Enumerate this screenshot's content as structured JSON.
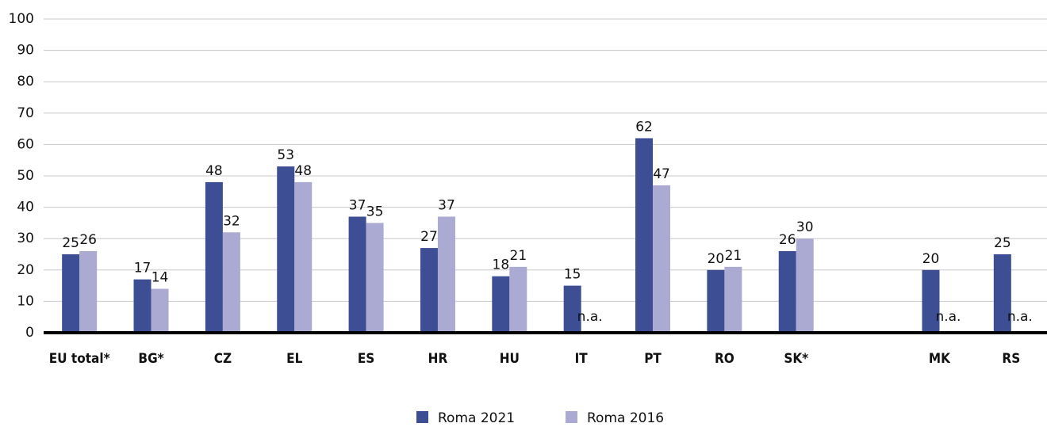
{
  "chart_data": {
    "type": "bar",
    "categories": [
      "EU total*",
      "BG*",
      "CZ",
      "EL",
      "ES",
      "HR",
      "HU",
      "IT",
      "PT",
      "RO",
      "SK*",
      null,
      "MK",
      "RS"
    ],
    "series": [
      {
        "name": "Roma 2021",
        "color": "#3d4e94",
        "values": [
          25,
          17,
          48,
          53,
          37,
          27,
          18,
          15,
          62,
          20,
          26,
          null,
          20,
          25
        ]
      },
      {
        "name": "Roma 2016",
        "color": "#aaaad3",
        "values": [
          26,
          14,
          32,
          48,
          35,
          37,
          21,
          null,
          47,
          21,
          30,
          null,
          null,
          null
        ],
        "value_labels": [
          "26",
          "14",
          "32",
          "48",
          "35",
          "37",
          "21",
          "n.a.",
          "47",
          "21",
          "30",
          null,
          "n.a.",
          "n.a."
        ]
      }
    ],
    "ylim": [
      0,
      100
    ],
    "yticks": [
      0,
      10,
      20,
      30,
      40,
      50,
      60,
      70,
      80,
      90,
      100
    ],
    "grid": true,
    "legend": "bottom"
  }
}
